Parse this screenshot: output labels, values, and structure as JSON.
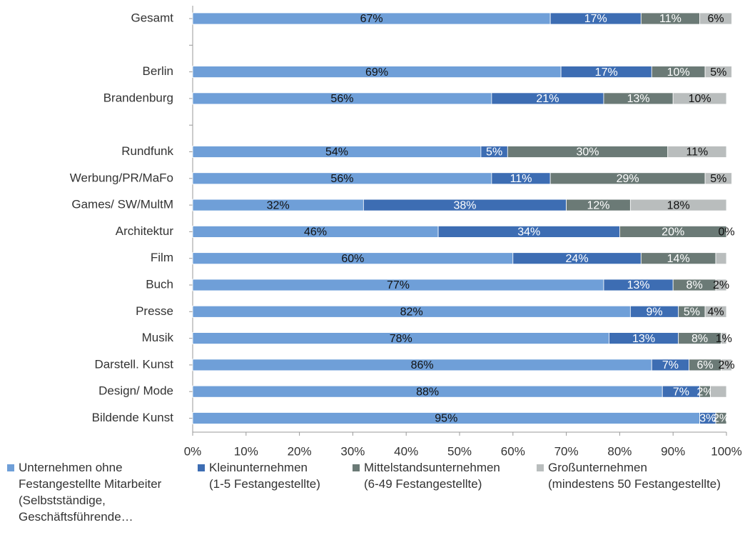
{
  "chart_data": {
    "type": "stacked_barh",
    "categories": [
      "Gesamt",
      null,
      "Berlin",
      "Brandenburg",
      null,
      "Rundfunk",
      "Werbung/PR/MaFo",
      "Games/ SW/MultM",
      "Architektur",
      "Film",
      "Buch",
      "Presse",
      "Musik",
      "Darstell. Kunst",
      "Design/ Mode",
      "Bildende Kunst"
    ],
    "series": [
      {
        "name": "Unternehmen ohne\nFestangestellte Mitarbeiter\n(Selbstständige,\nGeschäftsführende…",
        "color": "#6f9fd8",
        "label_color": "#111",
        "values": [
          67,
          null,
          69,
          56,
          null,
          54,
          56,
          32,
          46,
          60,
          77,
          82,
          78,
          86,
          88,
          95
        ],
        "value_labels": [
          "67%",
          null,
          "69%",
          "56%",
          null,
          "54%",
          "56%",
          "32%",
          "46%",
          "60%",
          "77%",
          "82%",
          "78%",
          "86%",
          "88%",
          "95%"
        ]
      },
      {
        "name": "Kleinunternehmen\n(1-5 Festangestellte)",
        "color": "#3d6db3",
        "label_color": "#fff",
        "values": [
          17,
          null,
          17,
          21,
          null,
          5,
          11,
          38,
          34,
          24,
          13,
          9,
          13,
          7,
          7,
          3
        ],
        "value_labels": [
          "17%",
          null,
          "17%",
          "21%",
          null,
          "5%",
          "11%",
          "38%",
          "34%",
          "24%",
          "13%",
          "9%",
          "13%",
          "7%",
          "7%",
          "3%"
        ]
      },
      {
        "name": "Mittelstandsunternehmen\n(6-49 Festangestellte)",
        "color": "#6b7a76",
        "label_color": "#fff",
        "values": [
          11,
          null,
          10,
          13,
          null,
          30,
          29,
          12,
          20,
          14,
          8,
          5,
          8,
          6,
          2,
          2
        ],
        "value_labels": [
          "11%",
          null,
          "10%",
          "13%",
          null,
          "30%",
          "29%",
          "12%",
          "20%",
          "14%",
          "8%",
          "5%",
          "8%",
          "6%",
          "2%",
          "2%"
        ]
      },
      {
        "name": "Großunternehmen\n(mindestens 50 Festangestellte)",
        "color": "#b9bdbd",
        "label_color": "#111",
        "values": [
          6,
          null,
          5,
          10,
          null,
          11,
          5,
          18,
          0,
          2,
          2,
          4,
          1,
          2,
          3,
          0
        ],
        "value_labels": [
          "6%",
          null,
          "5%",
          "10%",
          null,
          "11%",
          "5%",
          "18%",
          "0%",
          null,
          "2%",
          "4%",
          "1%",
          "2%",
          null,
          null
        ]
      }
    ],
    "xlim": [
      0,
      100
    ],
    "xticks": [
      {
        "value": 0,
        "label": "0%"
      },
      {
        "value": 10,
        "label": "10%"
      },
      {
        "value": 20,
        "label": "20%"
      },
      {
        "value": 30,
        "label": "30%"
      },
      {
        "value": 40,
        "label": "40%"
      },
      {
        "value": 50,
        "label": "50%"
      },
      {
        "value": 60,
        "label": "60%"
      },
      {
        "value": 70,
        "label": "70%"
      },
      {
        "value": 80,
        "label": "80%"
      },
      {
        "value": 90,
        "label": "90%"
      },
      {
        "value": 100,
        "label": "100%"
      }
    ]
  }
}
